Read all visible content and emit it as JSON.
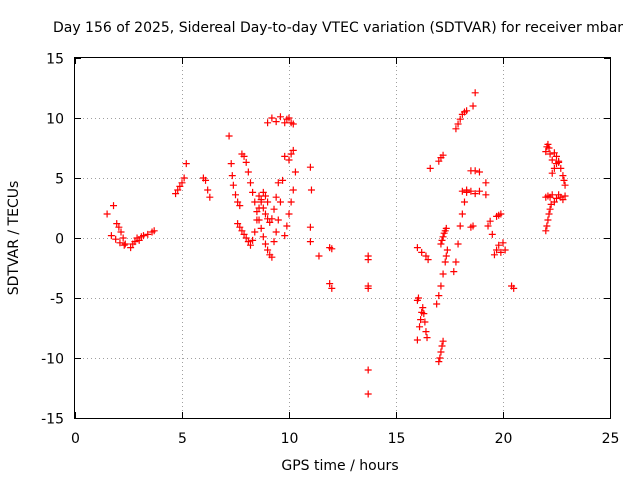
{
  "chart_data": {
    "type": "scatter",
    "title": "Day 156 of 2025, Sidereal Day-to-day VTEC variation (SDTVAR) for receiver mbar",
    "xlabel": "GPS time / hours",
    "ylabel": "SDTVAR / TECUs",
    "xlim": [
      0,
      25
    ],
    "ylim": [
      -15,
      15
    ],
    "xticks": [
      "0",
      "5",
      "10",
      "15",
      "20",
      "25"
    ],
    "yticks": [
      "-15",
      "-10",
      "-5",
      "0",
      "5",
      "10",
      "15"
    ],
    "grid": true,
    "marker": "+",
    "color": "#ff0000",
    "segments": [
      {
        "x": [
          1.5,
          1.7,
          1.9,
          2.1,
          2.3
        ],
        "y": [
          2.0,
          0.2,
          -0.1,
          -0.4,
          -0.6
        ]
      },
      {
        "x": [
          1.8,
          1.95,
          2.05,
          2.15,
          2.25,
          2.35
        ],
        "y": [
          2.7,
          1.2,
          0.9,
          0.5,
          0.0,
          -0.5
        ]
      },
      {
        "x": [
          2.6,
          2.7,
          2.8,
          2.9,
          3.0,
          3.1,
          3.2,
          3.4,
          3.6,
          3.7
        ],
        "y": [
          -0.8,
          -0.5,
          -0.3,
          0.0,
          -0.2,
          0.1,
          0.2,
          0.3,
          0.5,
          0.6
        ]
      },
      {
        "x": [
          4.7,
          4.8,
          4.9,
          5.0,
          5.1,
          5.2
        ],
        "y": [
          3.7,
          4.0,
          4.3,
          4.6,
          5.0,
          6.2
        ]
      },
      {
        "x": [
          6.0,
          6.1,
          6.2,
          6.3
        ],
        "y": [
          5.0,
          4.8,
          4.0,
          3.4
        ]
      },
      {
        "x": [
          7.2,
          7.3,
          7.35,
          7.4,
          7.5,
          7.6,
          7.7
        ],
        "y": [
          8.5,
          6.2,
          5.2,
          4.4,
          3.6,
          3.0,
          2.7
        ]
      },
      {
        "x": [
          7.8,
          7.9,
          8.0,
          8.1,
          8.2,
          8.3,
          8.4,
          8.5,
          8.6,
          8.7,
          8.8,
          8.9,
          9.0,
          9.1,
          9.2
        ],
        "y": [
          7.0,
          6.8,
          6.3,
          5.5,
          4.6,
          3.8,
          3.0,
          2.2,
          1.5,
          0.8,
          0.1,
          -0.5,
          -1.0,
          -1.4,
          -1.6
        ]
      },
      {
        "x": [
          7.6,
          7.7,
          7.8,
          7.9,
          8.0,
          8.1,
          8.2,
          8.3,
          8.4,
          8.5,
          8.6,
          8.7,
          8.8,
          8.9,
          9.0
        ],
        "y": [
          1.2,
          0.9,
          0.6,
          0.3,
          0.0,
          -0.3,
          -0.6,
          -0.2,
          0.5,
          1.5,
          2.5,
          3.2,
          3.8,
          3.5,
          3.0
        ]
      },
      {
        "x": [
          8.6,
          8.7,
          8.8,
          8.9,
          9.0,
          9.1,
          9.2,
          9.3,
          9.4,
          9.5
        ],
        "y": [
          3.5,
          3.0,
          2.5,
          2.0,
          1.6,
          1.3,
          1.6,
          2.4,
          3.4,
          4.6
        ]
      },
      {
        "x": [
          9.3,
          9.4,
          9.5,
          9.6,
          9.7,
          9.8
        ],
        "y": [
          -0.3,
          0.5,
          1.5,
          3.0,
          4.8,
          6.8
        ]
      },
      {
        "x": [
          9.0,
          9.2,
          9.4,
          9.6,
          9.8,
          9.9,
          10.0,
          10.1,
          10.2
        ],
        "y": [
          9.6,
          10.0,
          9.7,
          10.1,
          9.6,
          9.9,
          10.0,
          9.6,
          9.5
        ]
      },
      {
        "x": [
          9.8,
          9.9,
          10.0,
          10.1,
          10.2,
          10.3
        ],
        "y": [
          0.2,
          1.0,
          2.0,
          3.0,
          4.0,
          5.5
        ]
      },
      {
        "x": [
          10.0,
          10.1,
          10.2
        ],
        "y": [
          6.5,
          7.0,
          7.3
        ]
      },
      {
        "x": [
          11.0,
          11.05,
          11.0,
          11.0,
          11.4,
          11.9,
          12.0,
          11.9,
          12.0
        ],
        "y": [
          5.9,
          4.0,
          0.9,
          -0.3,
          -1.5,
          -0.8,
          -0.9,
          -3.8,
          -4.2
        ]
      },
      {
        "x": [
          13.7,
          13.7,
          13.7,
          13.7,
          13.7,
          13.7
        ],
        "y": [
          -1.5,
          -1.8,
          -4.0,
          -4.2,
          -11.0,
          -13.0
        ]
      },
      {
        "x": [
          16.0,
          16.2,
          16.4,
          16.5,
          16.6
        ],
        "y": [
          -0.8,
          -1.2,
          -1.5,
          -1.8,
          5.8
        ]
      },
      {
        "x": [
          16.0,
          16.1,
          16.15,
          16.2,
          16.25,
          16.3,
          16.35,
          16.4,
          16.45
        ],
        "y": [
          -8.5,
          -7.4,
          -6.8,
          -6.2,
          -5.8,
          -6.3,
          -7.0,
          -7.8,
          -8.3
        ]
      },
      {
        "x": [
          16.0,
          16.05
        ],
        "y": [
          -5.2,
          -5.0
        ]
      },
      {
        "x": [
          16.9,
          17.0,
          17.1,
          17.2,
          17.3,
          17.35,
          17.4
        ],
        "y": [
          -5.5,
          -4.8,
          -4.0,
          -3.0,
          -2.0,
          -1.5,
          -1.0
        ]
      },
      {
        "x": [
          17.0,
          17.05,
          17.1,
          17.15,
          17.2
        ],
        "y": [
          -10.3,
          -10.0,
          -9.5,
          -9.0,
          -8.6
        ]
      },
      {
        "x": [
          17.1,
          17.15,
          17.2,
          17.25,
          17.3,
          17.35
        ],
        "y": [
          -0.5,
          -0.2,
          0.1,
          0.4,
          0.6,
          0.8
        ]
      },
      {
        "x": [
          17.0,
          17.1,
          17.2
        ],
        "y": [
          6.4,
          6.7,
          6.9
        ]
      },
      {
        "x": [
          17.7,
          17.8,
          17.9,
          18.0,
          18.1,
          18.2,
          18.3
        ],
        "y": [
          -2.8,
          -2.0,
          -0.5,
          1.0,
          2.0,
          3.0,
          4.0
        ]
      },
      {
        "x": [
          17.8,
          17.9,
          18.0,
          18.1,
          18.2,
          18.3
        ],
        "y": [
          9.1,
          9.5,
          9.9,
          10.3,
          10.5,
          10.6
        ]
      },
      {
        "x": [
          18.6,
          18.7
        ],
        "y": [
          11.0,
          12.1
        ]
      },
      {
        "x": [
          18.1,
          18.3,
          18.5,
          18.7,
          18.9
        ],
        "y": [
          3.9,
          3.8,
          3.9,
          3.7,
          3.9
        ]
      },
      {
        "x": [
          18.5,
          18.7,
          18.9,
          19.2
        ],
        "y": [
          5.6,
          5.6,
          5.5,
          3.6
        ]
      },
      {
        "x": [
          18.5,
          18.6
        ],
        "y": [
          0.9,
          1.0
        ]
      },
      {
        "x": [
          19.2,
          19.3,
          19.4,
          19.5,
          19.6,
          19.7,
          19.8,
          19.9
        ],
        "y": [
          4.6,
          1.0,
          1.4,
          0.3,
          -1.4,
          -1.0,
          -0.6,
          -1.2
        ]
      },
      {
        "x": [
          19.7,
          19.8,
          19.9,
          20.0,
          20.1
        ],
        "y": [
          1.8,
          1.9,
          2.0,
          -0.4,
          -1.0
        ]
      },
      {
        "x": [
          20.4,
          20.5
        ],
        "y": [
          -4.0,
          -4.2
        ]
      },
      {
        "x": [
          22.0,
          22.05,
          22.1,
          22.15,
          22.2,
          22.25
        ],
        "y": [
          0.6,
          1.0,
          1.5,
          2.0,
          2.4,
          2.8
        ]
      },
      {
        "x": [
          22.0,
          22.05,
          22.1,
          22.15,
          22.2,
          22.3
        ],
        "y": [
          7.2,
          7.6,
          7.8,
          7.5,
          7.0,
          6.5
        ]
      },
      {
        "x": [
          22.0,
          22.1,
          22.2,
          22.3
        ],
        "y": [
          3.4,
          3.5,
          3.4,
          3.6
        ]
      },
      {
        "x": [
          22.4,
          22.5,
          22.6,
          22.7,
          22.8,
          22.85,
          22.9
        ],
        "y": [
          7.1,
          6.8,
          6.3,
          5.8,
          5.2,
          4.8,
          4.4
        ]
      },
      {
        "x": [
          22.4,
          22.5,
          22.6,
          22.7,
          22.8,
          22.9
        ],
        "y": [
          3.0,
          3.3,
          3.6,
          3.4,
          3.2,
          3.5
        ]
      },
      {
        "x": [
          22.3,
          22.4,
          22.5,
          22.6
        ],
        "y": [
          5.4,
          5.8,
          6.2,
          6.4
        ]
      }
    ]
  }
}
